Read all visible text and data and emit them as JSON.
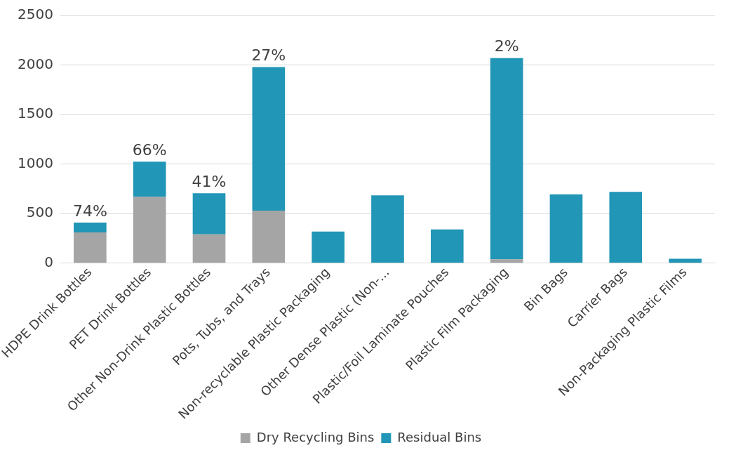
{
  "chart_data": {
    "type": "bar",
    "stacked": true,
    "categories": [
      "HDPE Drink Bottles",
      "PET Drink Bottles",
      "Other Non-Drink Plastic Bottles",
      "Pots, Tubs, and Trays",
      "Non-recyclable Plastic Packaging",
      "Other Dense Plastic (Non-...",
      "Plastic/Foil Laminate Pouches",
      "Plastic Film Packaging",
      "Bin Bags",
      "Carrier Bags",
      "Non-Packaging Plastic Films"
    ],
    "series": [
      {
        "name": "Dry Recycling Bins",
        "color": "#a5a5a5",
        "values": [
          310,
          670,
          290,
          530,
          0,
          0,
          0,
          40,
          0,
          0,
          0
        ]
      },
      {
        "name": "Residual Bins",
        "color": "#2196b6",
        "values": [
          100,
          355,
          415,
          1450,
          320,
          685,
          340,
          2030,
          695,
          720,
          45
        ]
      }
    ],
    "ylim": [
      0,
      2500
    ],
    "yticks": [
      0,
      500,
      1000,
      1500,
      2000,
      2500
    ],
    "grid": "y",
    "legend": "bottom",
    "annotations": [
      {
        "text": "74%",
        "x": "HDPE Drink Bottles",
        "y": 410
      },
      {
        "text": "66%",
        "x": "PET Drink Bottles",
        "y": 1025
      },
      {
        "text": "41%",
        "x": "Other Non-Drink Plastic Bottles",
        "y": 705
      },
      {
        "text": "27%",
        "x": "Pots, Tubs, and Trays",
        "y": 1980
      },
      {
        "text": "2%",
        "x": "Plastic Film Packaging",
        "y": 2070
      }
    ]
  }
}
